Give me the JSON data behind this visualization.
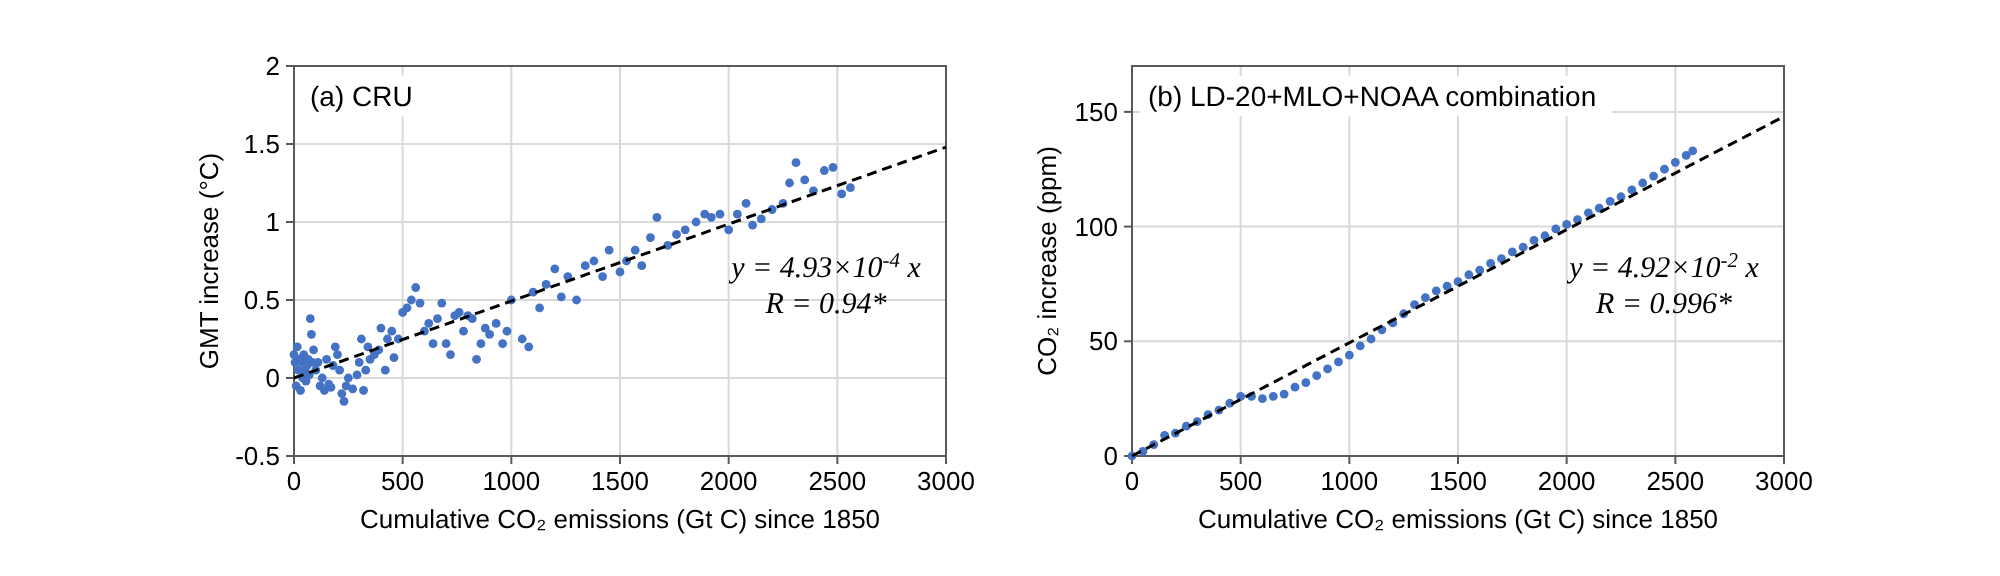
{
  "chart_data": [
    {
      "type": "scatter",
      "title": "(a) CRU",
      "xlabel": "Cumulative CO₂ emissions (Gt C) since 1850",
      "ylabel": "GMT increase (°C)",
      "xlim": [
        0,
        3000
      ],
      "xticks": [
        0,
        500,
        1000,
        1500,
        2000,
        2500,
        3000
      ],
      "ylim": [
        -0.5,
        2
      ],
      "yticks": [
        -0.5,
        0,
        0.5,
        1,
        1.5,
        2
      ],
      "grid": true,
      "marker": "circle",
      "annotations": [
        "y = 4.93×10$^{-4}$ x",
        "R = 0.94*"
      ],
      "series": [
        {
          "color": "#4472c4",
          "x": [
            0,
            5,
            10,
            15,
            20,
            25,
            30,
            35,
            40,
            45,
            50,
            55,
            60,
            65,
            70,
            75,
            80,
            85,
            90,
            100,
            110,
            120,
            130,
            140,
            150,
            160,
            170,
            180,
            190,
            200,
            210,
            220,
            230,
            240,
            250,
            270,
            290,
            300,
            310,
            320,
            330,
            340,
            350,
            370,
            390,
            400,
            420,
            430,
            450,
            460,
            480,
            500,
            520,
            540,
            560,
            580,
            600,
            620,
            640,
            660,
            680,
            700,
            720,
            740,
            760,
            780,
            800,
            820,
            840,
            860,
            880,
            900,
            930,
            960,
            980,
            1000,
            1050,
            1080,
            1100,
            1130,
            1160,
            1200,
            1230,
            1260,
            1300,
            1340,
            1380,
            1420,
            1450,
            1500,
            1530,
            1570,
            1600,
            1640,
            1670,
            1720,
            1760,
            1800,
            1850,
            1890,
            1920,
            1960,
            2000,
            2040,
            2080,
            2110,
            2150,
            2200,
            2250,
            2280,
            2310,
            2350,
            2390,
            2440,
            2480,
            2520,
            2560
          ],
          "values": [
            0.15,
            0.1,
            -0.05,
            0.2,
            0.05,
            0.12,
            -0.08,
            0.1,
            0.0,
            0.15,
            0.05,
            -0.02,
            0.08,
            0.12,
            0.02,
            0.38,
            0.28,
            0.1,
            0.18,
            0.05,
            0.1,
            -0.05,
            0.0,
            -0.08,
            0.12,
            -0.04,
            -0.06,
            0.08,
            0.2,
            0.15,
            0.05,
            -0.1,
            -0.15,
            -0.05,
            0.0,
            -0.07,
            0.02,
            0.1,
            0.25,
            -0.08,
            0.05,
            0.2,
            0.12,
            0.15,
            0.18,
            0.32,
            0.05,
            0.25,
            0.3,
            0.13,
            0.25,
            0.42,
            0.45,
            0.5,
            0.58,
            0.48,
            0.3,
            0.35,
            0.22,
            0.38,
            0.48,
            0.22,
            0.15,
            0.4,
            0.42,
            0.3,
            0.4,
            0.38,
            0.12,
            0.22,
            0.32,
            0.28,
            0.35,
            0.22,
            0.3,
            0.5,
            0.25,
            0.2,
            0.55,
            0.45,
            0.6,
            0.7,
            0.52,
            0.65,
            0.5,
            0.72,
            0.75,
            0.65,
            0.82,
            0.68,
            0.75,
            0.82,
            0.72,
            0.9,
            1.03,
            0.85,
            0.92,
            0.95,
            1.0,
            1.05,
            1.03,
            1.05,
            0.95,
            1.05,
            1.12,
            0.98,
            1.02,
            1.08,
            1.12,
            1.25,
            1.38,
            1.27,
            1.2,
            1.33,
            1.35,
            1.18,
            1.22
          ]
        },
        {
          "type": "line",
          "marker": "none",
          "line_style": "dashed",
          "color": "#000000",
          "x": [
            0,
            3000
          ],
          "values": [
            0,
            1.48
          ]
        }
      ]
    },
    {
      "type": "scatter",
      "title": "(b) LD-20+MLO+NOAA combination",
      "xlabel": "Cumulative CO₂ emissions (Gt C) since 1850",
      "ylabel": "CO₂ increase (ppm)",
      "xlim": [
        0,
        3000
      ],
      "xticks": [
        0,
        500,
        1000,
        1500,
        2000,
        2500,
        3000
      ],
      "ylim": [
        0,
        170
      ],
      "yticks": [
        0,
        50,
        100,
        150
      ],
      "grid": true,
      "marker": "circle",
      "annotations": [
        "y = 4.92×10$^{-2}$ x",
        "R = 0.996*"
      ],
      "series": [
        {
          "color": "#4472c4",
          "x": [
            0,
            50,
            100,
            150,
            200,
            250,
            300,
            350,
            400,
            450,
            500,
            550,
            600,
            650,
            700,
            750,
            800,
            850,
            900,
            950,
            1000,
            1050,
            1100,
            1150,
            1200,
            1250,
            1300,
            1350,
            1400,
            1450,
            1500,
            1550,
            1600,
            1650,
            1700,
            1750,
            1800,
            1850,
            1900,
            1950,
            2000,
            2050,
            2100,
            2150,
            2200,
            2250,
            2300,
            2350,
            2400,
            2450,
            2500,
            2550,
            2580
          ],
          "values": [
            0,
            2,
            5,
            9,
            10,
            13,
            15,
            18,
            20,
            23,
            26,
            26,
            25,
            26,
            27,
            30,
            32,
            35,
            38,
            41,
            44,
            48,
            51,
            55,
            58,
            62,
            66,
            69,
            72,
            74,
            76,
            79,
            81,
            84,
            86,
            89,
            91,
            94,
            96,
            99,
            101,
            103,
            106,
            108,
            111,
            113,
            116,
            119,
            122,
            125,
            128,
            131,
            133
          ]
        },
        {
          "type": "line",
          "marker": "none",
          "line_style": "dashed",
          "color": "#000000",
          "x": [
            0,
            3000
          ],
          "values": [
            0,
            148
          ]
        }
      ]
    }
  ]
}
